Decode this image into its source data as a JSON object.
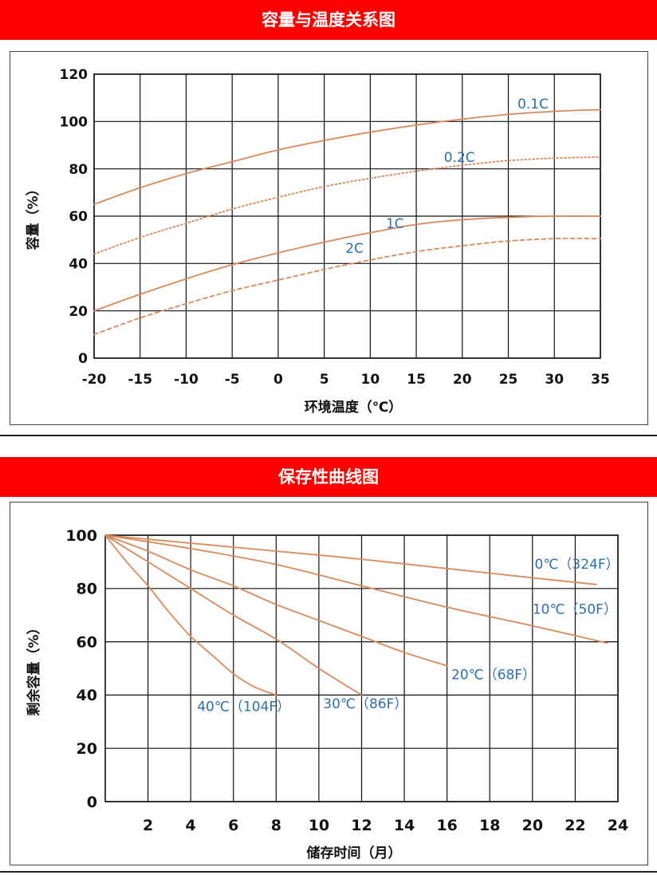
{
  "banners": {
    "chart1_title": "容量与温度关系图",
    "chart2_title": "保存性曲线图"
  },
  "colors": {
    "banner_bg": "#ff0000",
    "curve": "#d98a5a",
    "label": "#2a6fb0",
    "grid": "#111111"
  },
  "chart_data": [
    {
      "type": "line",
      "title": "容量与温度关系图",
      "xlabel": "环境温度（℃）",
      "ylabel": "容量（%）",
      "xlim": [
        -20,
        35
      ],
      "ylim": [
        0,
        120
      ],
      "x_ticks": [
        "-20",
        "-15",
        "-10",
        "-5",
        "0",
        "5",
        "10",
        "15",
        "20",
        "25",
        "30",
        "35"
      ],
      "y_ticks": [
        "0",
        "20",
        "40",
        "60",
        "80",
        "100",
        "120"
      ],
      "grid": true,
      "series": [
        {
          "name": "0.1C",
          "style": "solid",
          "points": [
            [
              -20,
              65
            ],
            [
              -15,
              72
            ],
            [
              -10,
              78
            ],
            [
              -5,
              83
            ],
            [
              0,
              88
            ],
            [
              5,
              92
            ],
            [
              10,
              95.5
            ],
            [
              15,
              98.5
            ],
            [
              20,
              101
            ],
            [
              25,
              103
            ],
            [
              30,
              104.3
            ],
            [
              35,
              105
            ]
          ]
        },
        {
          "name": "0.2C",
          "style": "dotted",
          "points": [
            [
              -20,
              44
            ],
            [
              -15,
              51
            ],
            [
              -10,
              57
            ],
            [
              -5,
              63
            ],
            [
              0,
              68
            ],
            [
              5,
              72.5
            ],
            [
              10,
              76
            ],
            [
              15,
              79
            ],
            [
              20,
              81.5
            ],
            [
              25,
              83.5
            ],
            [
              30,
              84.5
            ],
            [
              35,
              85
            ]
          ]
        },
        {
          "name": "1C",
          "style": "solid",
          "points": [
            [
              -20,
              20
            ],
            [
              -15,
              27
            ],
            [
              -10,
              33.5
            ],
            [
              -5,
              39.5
            ],
            [
              0,
              44.5
            ],
            [
              5,
              49
            ],
            [
              10,
              53
            ],
            [
              15,
              56.5
            ],
            [
              20,
              58.5
            ],
            [
              25,
              59.5
            ],
            [
              30,
              60
            ],
            [
              35,
              60
            ]
          ]
        },
        {
          "name": "2C",
          "style": "dashed",
          "points": [
            [
              -20,
              10
            ],
            [
              -15,
              17
            ],
            [
              -10,
              23
            ],
            [
              -5,
              28.5
            ],
            [
              0,
              33
            ],
            [
              5,
              37.5
            ],
            [
              10,
              41.5
            ],
            [
              15,
              45
            ],
            [
              20,
              47.5
            ],
            [
              25,
              49.5
            ],
            [
              30,
              50.5
            ],
            [
              35,
              50.5
            ]
          ]
        }
      ],
      "labels": [
        {
          "text": "0.1C",
          "x": 26,
          "y": 105.5
        },
        {
          "text": "0.2C",
          "x": 18,
          "y": 83
        },
        {
          "text": "1C",
          "x": 11.7,
          "y": 55
        },
        {
          "text": "2C",
          "x": 7.3,
          "y": 44.5
        }
      ]
    },
    {
      "type": "line",
      "title": "保存性曲线图",
      "xlabel": "储存时间（月）",
      "ylabel": "剩余容量（%）",
      "xlim": [
        0,
        24
      ],
      "ylim": [
        0,
        100
      ],
      "x_ticks": [
        "2",
        "4",
        "6",
        "8",
        "10",
        "12",
        "14",
        "16",
        "18",
        "20",
        "22",
        "24"
      ],
      "y_ticks": [
        "0",
        "20",
        "40",
        "60",
        "80",
        "100"
      ],
      "grid": true,
      "series": [
        {
          "name": "0℃（324F）",
          "style": "solid",
          "points": [
            [
              0,
              100
            ],
            [
              4,
              97
            ],
            [
              8,
              94
            ],
            [
              12,
              91
            ],
            [
              16,
              87.5
            ],
            [
              20,
              84
            ],
            [
              23,
              81.5
            ]
          ]
        },
        {
          "name": "10℃（50F）",
          "style": "solid",
          "points": [
            [
              0,
              100
            ],
            [
              4,
              95
            ],
            [
              8,
              89
            ],
            [
              12,
              81
            ],
            [
              16,
              73
            ],
            [
              20,
              66
            ],
            [
              23.5,
              59.5
            ]
          ]
        },
        {
          "name": "20℃（68F）",
          "style": "solid",
          "points": [
            [
              0,
              100
            ],
            [
              2,
              94
            ],
            [
              4,
              87
            ],
            [
              6,
              81
            ],
            [
              8,
              74
            ],
            [
              10,
              68
            ],
            [
              12,
              62
            ],
            [
              14,
              56
            ],
            [
              16,
              51
            ]
          ]
        },
        {
          "name": "30℃（86F）",
          "style": "solid",
          "points": [
            [
              0,
              100
            ],
            [
              2,
              90
            ],
            [
              4,
              80
            ],
            [
              6,
              70
            ],
            [
              8,
              61
            ],
            [
              10,
              50
            ],
            [
              12,
              40
            ]
          ]
        },
        {
          "name": "40℃（104F）",
          "style": "solid",
          "points": [
            [
              0,
              100
            ],
            [
              1,
              90
            ],
            [
              2,
              81
            ],
            [
              3,
              71
            ],
            [
              4,
              62
            ],
            [
              5,
              55
            ],
            [
              6,
              48
            ],
            [
              7,
              43
            ],
            [
              8,
              40
            ]
          ]
        }
      ],
      "labels": [
        {
          "text": "0℃（324F）",
          "x": 20.1,
          "y": 87.5
        },
        {
          "text": "10℃（50F）",
          "x": 20.0,
          "y": 70.5
        },
        {
          "text": "20℃（68F）",
          "x": 16.2,
          "y": 46
        },
        {
          "text": "30℃（86F）",
          "x": 10.2,
          "y": 35
        },
        {
          "text": "40℃（104F）",
          "x": 4.3,
          "y": 34
        }
      ]
    }
  ]
}
